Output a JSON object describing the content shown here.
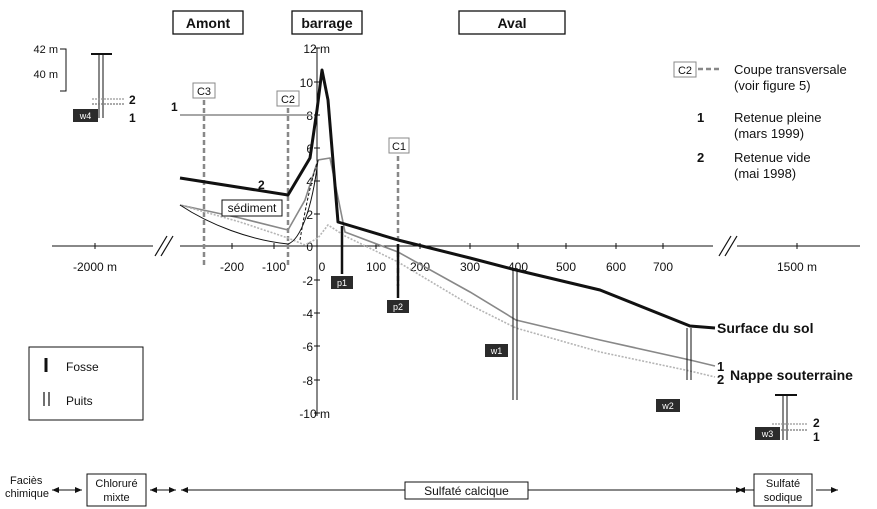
{
  "headers": {
    "amont": "Amont",
    "barrage": "barrage",
    "aval": "Aval"
  },
  "left_inset": {
    "top": "42 m",
    "bottom": "40 m"
  },
  "vertical_axis": [
    "12 m",
    "10",
    "8",
    "6",
    "4",
    "2",
    "0",
    "-2",
    "-4",
    "-6",
    "-8",
    "-10 m"
  ],
  "horizontal_axis": {
    "left_far": "-2000 m",
    "ticks": [
      "-200",
      "-100",
      "0",
      "100",
      "200",
      "300",
      "400",
      "500",
      "600",
      "700"
    ],
    "right_far": "1500 m"
  },
  "sections": {
    "c1": "C1",
    "c2": "C2",
    "c3": "C3"
  },
  "wells": {
    "w1": "w1",
    "w2": "w2",
    "w3": "w3",
    "w4": "w4",
    "p1": "p1",
    "p2": "p2"
  },
  "markers": {
    "one": "1",
    "two": "2"
  },
  "labels": {
    "sediment": "sédiment",
    "surface": "Surface du sol",
    "nappe": "Nappe souterraine"
  },
  "legend_top": {
    "coupe_key": "C2",
    "coupe_line1": "Coupe transversale",
    "coupe_line2": "(voir figure 5)",
    "one_key": "1",
    "one_line1": "Retenue pleine",
    "one_line2": "(mars 1999)",
    "two_key": "2",
    "two_line1": "Retenue vide",
    "two_line2": "(mai 1998)"
  },
  "legend_bottom": {
    "fosse": "Fosse",
    "puits": "Puits"
  },
  "facies": {
    "label1": "Faciès",
    "label2": "chimique",
    "chlorure1": "Chloruré",
    "chlorure2": "mixte",
    "calcique": "Sulfaté calcique",
    "sodique1": "Sulfaté",
    "sodique2": "sodique"
  },
  "colors": {
    "surface": "#111111",
    "water_full": "#888888",
    "water_empty": "#b5b5b5",
    "dark_box": "#2b2b2b"
  }
}
